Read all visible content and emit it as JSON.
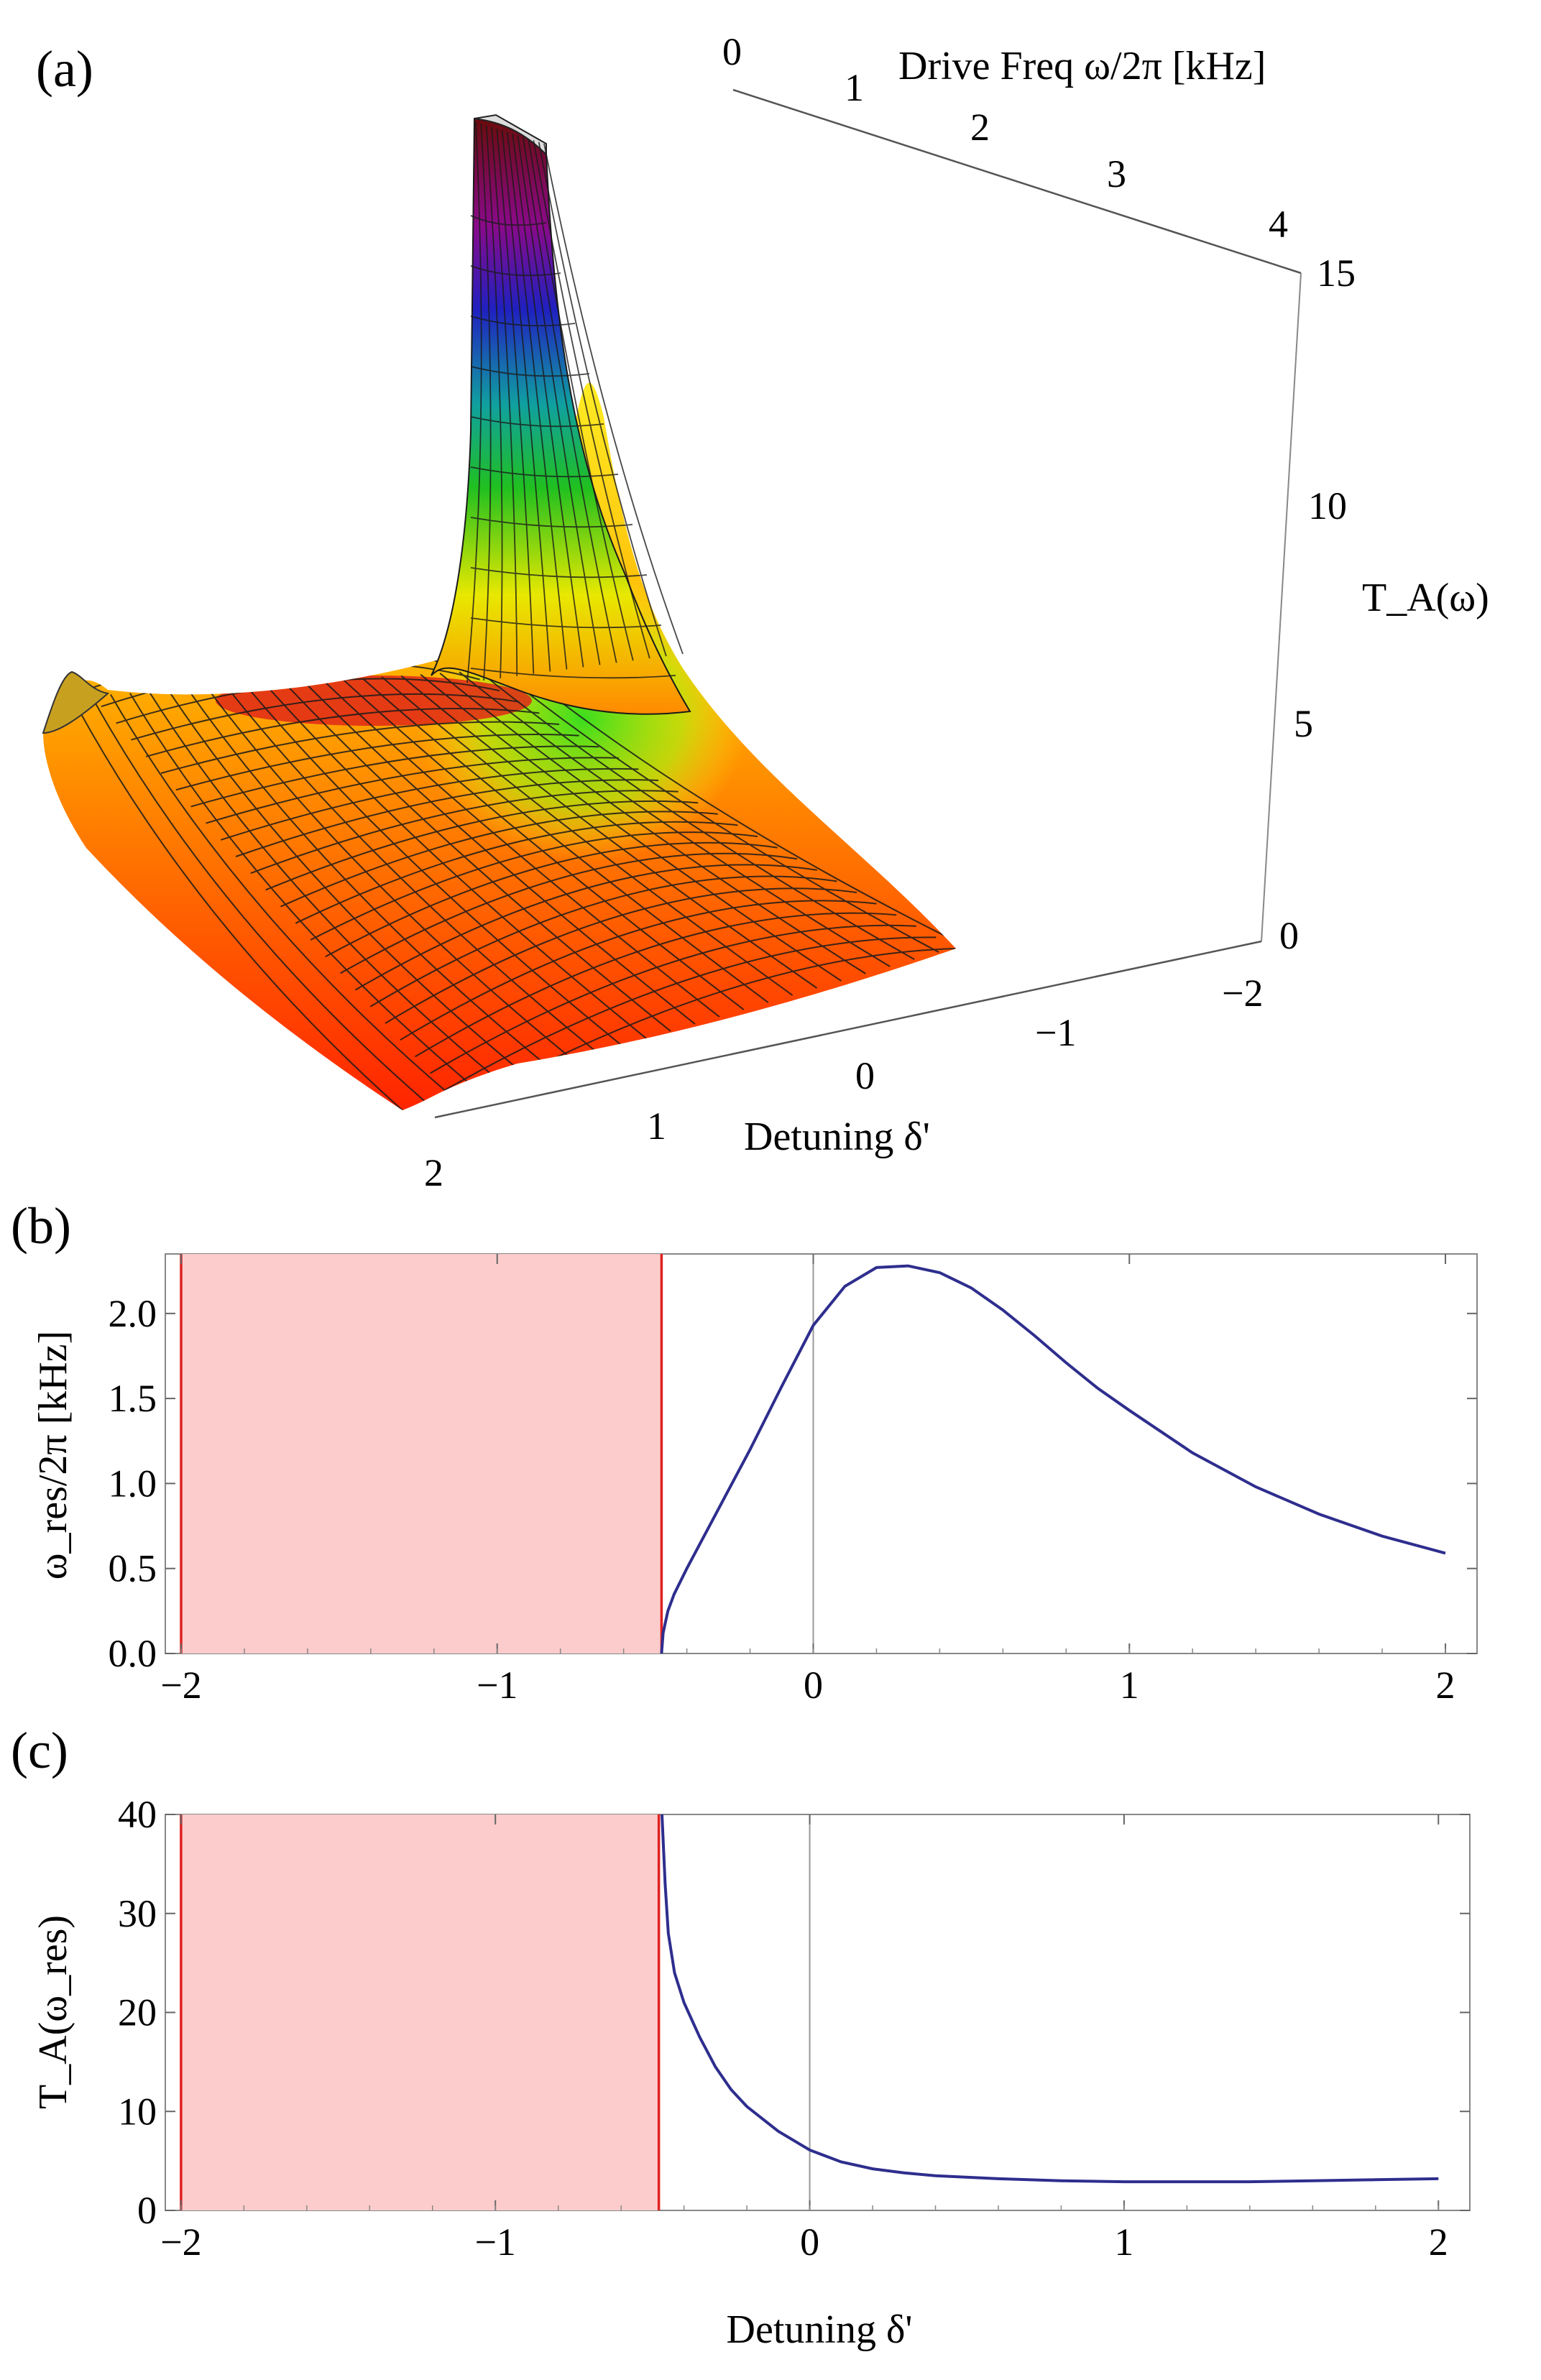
{
  "panel_labels": {
    "a": "(a)",
    "b": "(b)",
    "c": "(c)"
  },
  "chart_data": [
    {
      "id": "a",
      "type": "surface",
      "panel": "(a)",
      "x_axis": {
        "label": "Detuning δ'",
        "ticks": [
          "2",
          "1",
          "0",
          "−1",
          "−2"
        ],
        "range": [
          2,
          -2
        ]
      },
      "y_axis": {
        "label": "Drive Freq ω/2π [kHz]",
        "ticks": [
          "0",
          "1",
          "2",
          "3",
          "4"
        ],
        "range": [
          0,
          4
        ]
      },
      "z_axis": {
        "label": "T_A(ω)",
        "ticks": [
          "0",
          "5",
          "10",
          "15"
        ],
        "range": [
          0,
          15
        ]
      },
      "colormap": "rainbow",
      "peak": {
        "detuning": -0.5,
        "drive_freq_khz": 0.2,
        "value": 15
      }
    },
    {
      "id": "b",
      "type": "line",
      "panel": "(b)",
      "xlabel": "",
      "ylabel": "ω_res/2π [kHz]",
      "xlim": [
        -2.05,
        2.1
      ],
      "ylim": [
        0,
        2.35
      ],
      "xticks": [
        -2,
        -1,
        0,
        1,
        2
      ],
      "xtick_labels": [
        "−2",
        "−1",
        "0",
        "1",
        "2"
      ],
      "yticks": [
        0.0,
        0.5,
        1.0,
        1.5,
        2.0
      ],
      "ytick_labels": [
        "0.0",
        "0.5",
        "1.0",
        "1.5",
        "2.0"
      ],
      "shaded_region": {
        "x": [
          -2,
          -0.48
        ],
        "color": "#fccccc",
        "edge_color": "#e02020"
      },
      "series": [
        {
          "color": "#2e2e8e",
          "x": [
            -0.48,
            -0.475,
            -0.46,
            -0.44,
            -0.4,
            -0.3,
            -0.2,
            -0.1,
            0,
            0.1,
            0.2,
            0.3,
            0.4,
            0.5,
            0.6,
            0.7,
            0.8,
            0.9,
            1.0,
            1.2,
            1.4,
            1.6,
            1.8,
            2.0
          ],
          "y": [
            0.0,
            0.12,
            0.25,
            0.35,
            0.5,
            0.85,
            1.2,
            1.57,
            1.93,
            2.16,
            2.27,
            2.28,
            2.24,
            2.15,
            2.02,
            1.87,
            1.71,
            1.56,
            1.43,
            1.18,
            0.98,
            0.82,
            0.69,
            0.59
          ]
        }
      ]
    },
    {
      "id": "c",
      "type": "line",
      "panel": "(c)",
      "xlabel": "Detuning δ'",
      "ylabel": "T_A(ω_res)",
      "xlim": [
        -2.05,
        2.1
      ],
      "ylim": [
        0,
        40
      ],
      "xticks": [
        -2,
        -1,
        0,
        1,
        2
      ],
      "xtick_labels": [
        "−2",
        "−1",
        "0",
        "1",
        "2"
      ],
      "yticks": [
        0,
        10,
        20,
        30,
        40
      ],
      "ytick_labels": [
        "0",
        "10",
        "20",
        "30",
        "40"
      ],
      "shaded_region": {
        "x": [
          -2,
          -0.48
        ],
        "color": "#fccccc",
        "edge_color": "#e02020"
      },
      "series": [
        {
          "color": "#2e2e8e",
          "x": [
            -0.47,
            -0.46,
            -0.45,
            -0.43,
            -0.4,
            -0.35,
            -0.3,
            -0.25,
            -0.2,
            -0.1,
            0,
            0.1,
            0.2,
            0.3,
            0.4,
            0.6,
            0.8,
            1.0,
            1.2,
            1.4,
            1.6,
            1.8,
            2.0
          ],
          "y": [
            40,
            33,
            28,
            24,
            21,
            17.5,
            14.5,
            12.2,
            10.5,
            8,
            6.1,
            4.9,
            4.2,
            3.8,
            3.5,
            3.2,
            3.0,
            2.9,
            2.9,
            2.9,
            3.0,
            3.1,
            3.2
          ]
        }
      ]
    }
  ]
}
